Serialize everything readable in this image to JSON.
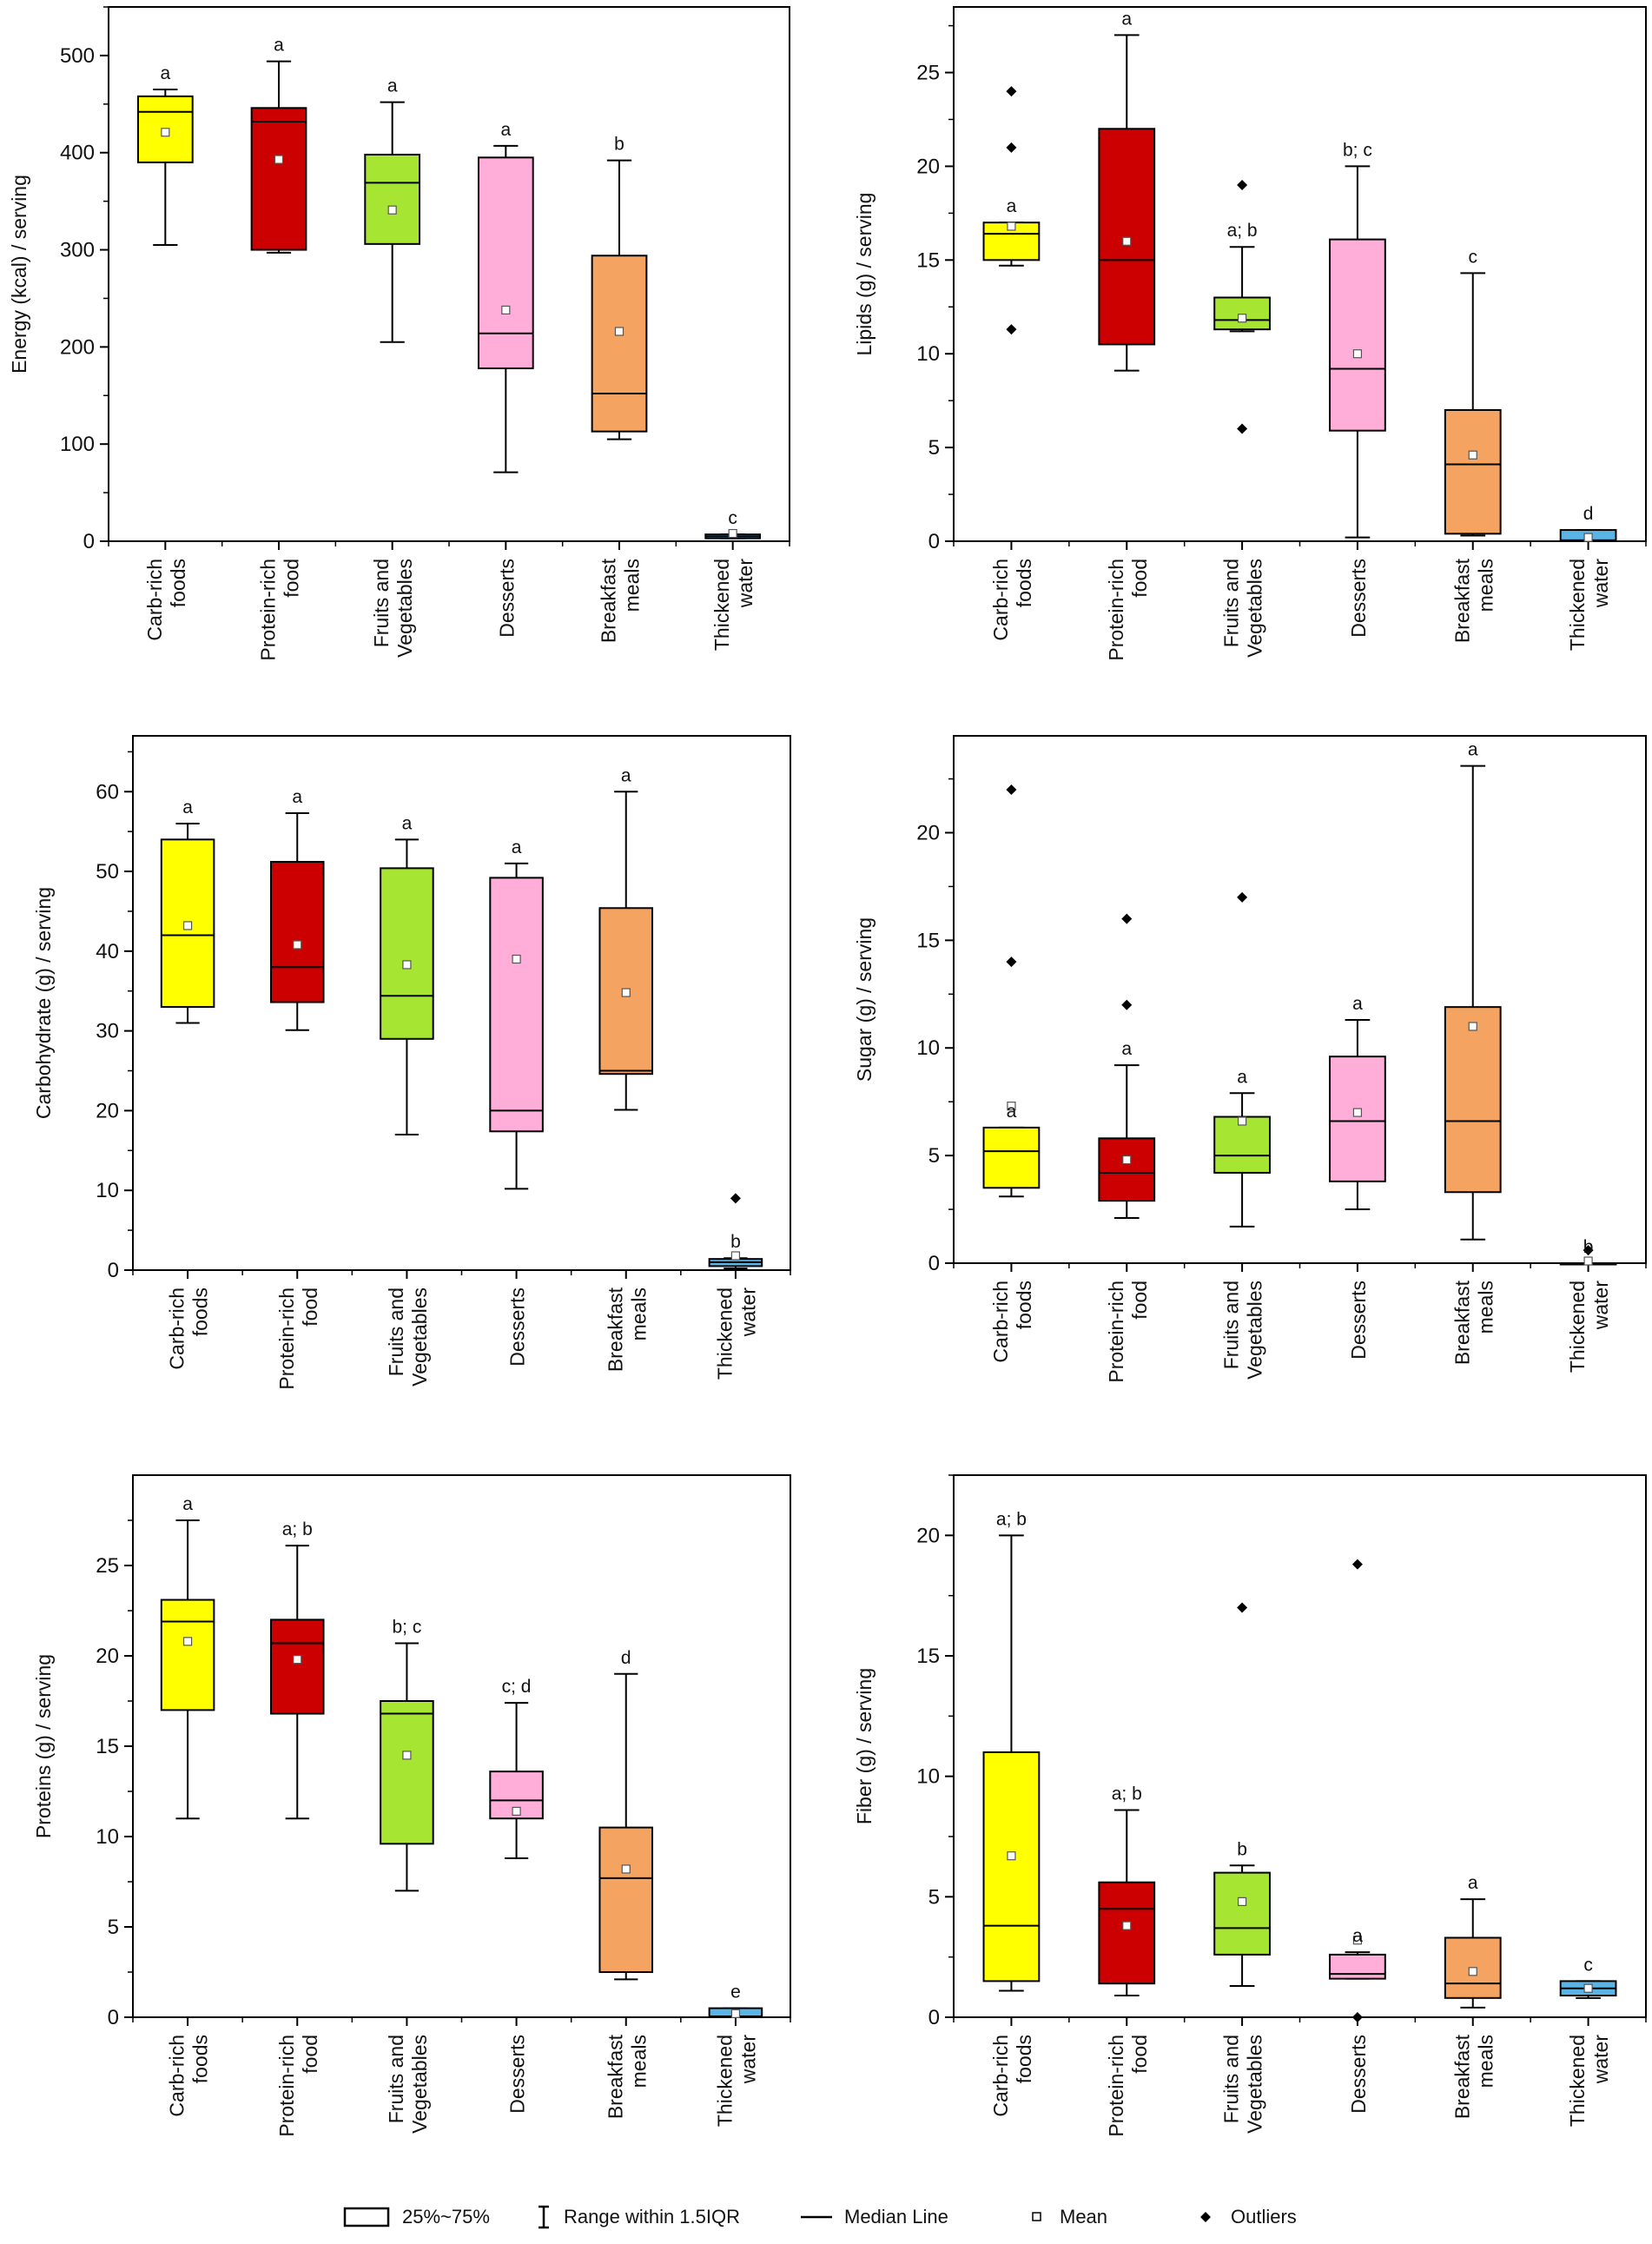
{
  "categories": [
    [
      "Carb-rich",
      "foods"
    ],
    [
      "Protein-rich",
      "food"
    ],
    [
      "Fruits and",
      "Vegetables"
    ],
    [
      "Desserts"
    ],
    [
      "Breakfast",
      "meals"
    ],
    [
      "Thickened",
      "water"
    ]
  ],
  "colors": [
    "#ffff00",
    "#cc0000",
    "#a6e633",
    "#ffaed9",
    "#f4a460",
    "#5ab4e6"
  ],
  "legend": {
    "box": "25%~75%",
    "range": "Range within 1.5IQR",
    "median": "Median Line",
    "mean": "Mean",
    "outliers": "Outliers"
  },
  "chart_data": [
    {
      "type": "box",
      "ylabel": "Energy (kcal) / serving",
      "ylim": [
        0,
        550
      ],
      "yticks": [
        0,
        100,
        200,
        300,
        400,
        500
      ],
      "boxes": [
        {
          "q1": 390,
          "median": 442,
          "q3": 458,
          "whisker_low": 305,
          "whisker_high": 465,
          "mean": 421,
          "letter": "a",
          "outliers": []
        },
        {
          "q1": 300,
          "median": 432,
          "q3": 446,
          "whisker_low": 297,
          "whisker_high": 494,
          "mean": 393,
          "letter": "a",
          "outliers": []
        },
        {
          "q1": 306,
          "median": 369,
          "q3": 398,
          "whisker_low": 205,
          "whisker_high": 452,
          "mean": 341,
          "letter": "a",
          "outliers": []
        },
        {
          "q1": 178,
          "median": 214,
          "q3": 395,
          "whisker_low": 71,
          "whisker_high": 407,
          "mean": 238,
          "letter": "a",
          "outliers": []
        },
        {
          "q1": 113,
          "median": 152,
          "q3": 294,
          "whisker_low": 105,
          "whisker_high": 392,
          "mean": 216,
          "letter": "b",
          "outliers": []
        },
        {
          "q1": 3,
          "median": 5,
          "q3": 7,
          "whisker_low": 3,
          "whisker_high": 7,
          "mean": 8,
          "letter": "c",
          "outliers": []
        }
      ]
    },
    {
      "type": "box",
      "ylabel": "Lipids (g) / serving",
      "ylim": [
        0,
        28.5
      ],
      "yticks": [
        0,
        5,
        10,
        15,
        20,
        25
      ],
      "boxes": [
        {
          "q1": 15.0,
          "median": 16.4,
          "q3": 17.0,
          "whisker_low": 14.7,
          "whisker_high": 17.0,
          "mean": 16.8,
          "letter": "a",
          "outliers": [
            11.3,
            21.0,
            24.0
          ]
        },
        {
          "q1": 10.5,
          "median": 15.0,
          "q3": 22.0,
          "whisker_low": 9.1,
          "whisker_high": 27.0,
          "mean": 16.0,
          "letter": "a",
          "outliers": []
        },
        {
          "q1": 11.3,
          "median": 11.8,
          "q3": 13.0,
          "whisker_low": 11.2,
          "whisker_high": 15.7,
          "mean": 11.9,
          "letter": "a; b",
          "outliers": [
            6.0,
            19.0
          ]
        },
        {
          "q1": 5.9,
          "median": 9.2,
          "q3": 16.1,
          "whisker_low": 0.2,
          "whisker_high": 20.0,
          "mean": 10.0,
          "letter": "b; c",
          "outliers": []
        },
        {
          "q1": 0.4,
          "median": 4.1,
          "q3": 7.0,
          "whisker_low": 0.3,
          "whisker_high": 14.3,
          "mean": 4.6,
          "letter": "c",
          "outliers": []
        },
        {
          "q1": 0.0,
          "median": 0.05,
          "q3": 0.6,
          "whisker_low": 0.0,
          "whisker_high": 0.6,
          "mean": 0.2,
          "letter": "d",
          "outliers": []
        }
      ]
    },
    {
      "type": "box",
      "ylabel": "Carbohydrate (g) / serving",
      "ylim": [
        0,
        67
      ],
      "yticks": [
        0,
        10,
        20,
        30,
        40,
        50,
        60
      ],
      "boxes": [
        {
          "q1": 33.0,
          "median": 42.0,
          "q3": 54.0,
          "whisker_low": 31.0,
          "whisker_high": 56.0,
          "mean": 43.2,
          "letter": "a",
          "outliers": []
        },
        {
          "q1": 33.6,
          "median": 38.0,
          "q3": 51.2,
          "whisker_low": 30.1,
          "whisker_high": 57.3,
          "mean": 40.8,
          "letter": "a",
          "outliers": []
        },
        {
          "q1": 29.0,
          "median": 34.4,
          "q3": 50.4,
          "whisker_low": 17.0,
          "whisker_high": 54.0,
          "mean": 38.3,
          "letter": "a",
          "outliers": []
        },
        {
          "q1": 17.4,
          "median": 20.0,
          "q3": 49.2,
          "whisker_low": 10.2,
          "whisker_high": 51.0,
          "mean": 39.0,
          "letter": "a",
          "outliers": []
        },
        {
          "q1": 24.6,
          "median": 25.0,
          "q3": 45.4,
          "whisker_low": 20.1,
          "whisker_high": 60.0,
          "mean": 34.8,
          "letter": "a",
          "outliers": []
        },
        {
          "q1": 0.5,
          "median": 1.0,
          "q3": 1.4,
          "whisker_low": 0.2,
          "whisker_high": 1.5,
          "mean": 1.8,
          "letter": "b",
          "outliers": [
            9.0
          ]
        }
      ]
    },
    {
      "type": "box",
      "ylabel": "Sugar (g) / serving",
      "ylim": [
        0,
        24.5
      ],
      "yticks": [
        0,
        5,
        10,
        15,
        20
      ],
      "boxes": [
        {
          "q1": 3.5,
          "median": 5.2,
          "q3": 6.3,
          "whisker_low": 3.1,
          "whisker_high": 6.3,
          "mean": 7.3,
          "letter": "a",
          "outliers": [
            14.0,
            22.0
          ]
        },
        {
          "q1": 2.9,
          "median": 4.2,
          "q3": 5.8,
          "whisker_low": 2.1,
          "whisker_high": 9.2,
          "mean": 4.8,
          "letter": "a",
          "outliers": [
            12.0,
            16.0
          ]
        },
        {
          "q1": 4.2,
          "median": 5.0,
          "q3": 6.8,
          "whisker_low": 1.7,
          "whisker_high": 7.9,
          "mean": 6.6,
          "letter": "a",
          "outliers": [
            17.0
          ]
        },
        {
          "q1": 3.8,
          "median": 6.6,
          "q3": 9.6,
          "whisker_low": 2.5,
          "whisker_high": 11.3,
          "mean": 7.0,
          "letter": "a",
          "outliers": []
        },
        {
          "q1": 3.3,
          "median": 6.6,
          "q3": 11.9,
          "whisker_low": 1.1,
          "whisker_high": 23.1,
          "mean": 11.0,
          "letter": "a",
          "outliers": []
        },
        {
          "q1": 0.0,
          "median": 0.0,
          "q3": 0.0,
          "whisker_low": 0.0,
          "whisker_high": 0.0,
          "mean": 0.1,
          "letter": "b",
          "outliers": [
            0.6
          ]
        }
      ]
    },
    {
      "type": "box",
      "ylabel": "Proteins (g) / serving",
      "ylim": [
        0,
        30
      ],
      "yticks": [
        0,
        5,
        10,
        15,
        20,
        25
      ],
      "boxes": [
        {
          "q1": 17.0,
          "median": 21.9,
          "q3": 23.1,
          "whisker_low": 11.0,
          "whisker_high": 27.5,
          "mean": 20.8,
          "letter": "a",
          "outliers": []
        },
        {
          "q1": 16.8,
          "median": 20.7,
          "q3": 22.0,
          "whisker_low": 11.0,
          "whisker_high": 26.1,
          "mean": 19.8,
          "letter": "a; b",
          "outliers": []
        },
        {
          "q1": 9.6,
          "median": 16.8,
          "q3": 17.5,
          "whisker_low": 7.0,
          "whisker_high": 20.7,
          "mean": 14.5,
          "letter": "b; c",
          "outliers": []
        },
        {
          "q1": 11.0,
          "median": 12.0,
          "q3": 13.6,
          "whisker_low": 8.8,
          "whisker_high": 17.4,
          "mean": 11.4,
          "letter": "c; d",
          "outliers": []
        },
        {
          "q1": 2.5,
          "median": 7.7,
          "q3": 10.5,
          "whisker_low": 2.1,
          "whisker_high": 19.0,
          "mean": 8.2,
          "letter": "d",
          "outliers": []
        },
        {
          "q1": 0.0,
          "median": 0.05,
          "q3": 0.5,
          "whisker_low": 0.0,
          "whisker_high": 0.5,
          "mean": 0.2,
          "letter": "e",
          "outliers": []
        }
      ]
    },
    {
      "type": "box",
      "ylabel": "Fiber (g) / serving",
      "ylim": [
        0,
        22.5
      ],
      "yticks": [
        0,
        5,
        10,
        15,
        20
      ],
      "boxes": [
        {
          "q1": 1.5,
          "median": 3.8,
          "q3": 11.0,
          "whisker_low": 1.1,
          "whisker_high": 20.0,
          "mean": 6.7,
          "letter": "a; b",
          "outliers": []
        },
        {
          "q1": 1.4,
          "median": 4.5,
          "q3": 5.6,
          "whisker_low": 0.9,
          "whisker_high": 8.6,
          "mean": 3.8,
          "letter": "a; b",
          "outliers": []
        },
        {
          "q1": 2.6,
          "median": 3.7,
          "q3": 6.0,
          "whisker_low": 1.3,
          "whisker_high": 6.3,
          "mean": 4.8,
          "letter": "b",
          "outliers": [
            17.0
          ]
        },
        {
          "q1": 1.6,
          "median": 1.8,
          "q3": 2.6,
          "whisker_low": 1.6,
          "whisker_high": 2.7,
          "mean": 3.2,
          "letter": "a",
          "outliers": [
            0.0,
            18.8
          ]
        },
        {
          "q1": 0.8,
          "median": 1.4,
          "q3": 3.3,
          "whisker_low": 0.4,
          "whisker_high": 4.9,
          "mean": 1.9,
          "letter": "a",
          "outliers": []
        },
        {
          "q1": 0.9,
          "median": 1.2,
          "q3": 1.5,
          "whisker_low": 0.8,
          "whisker_high": 1.5,
          "mean": 1.2,
          "letter": "c",
          "outliers": []
        }
      ]
    }
  ]
}
